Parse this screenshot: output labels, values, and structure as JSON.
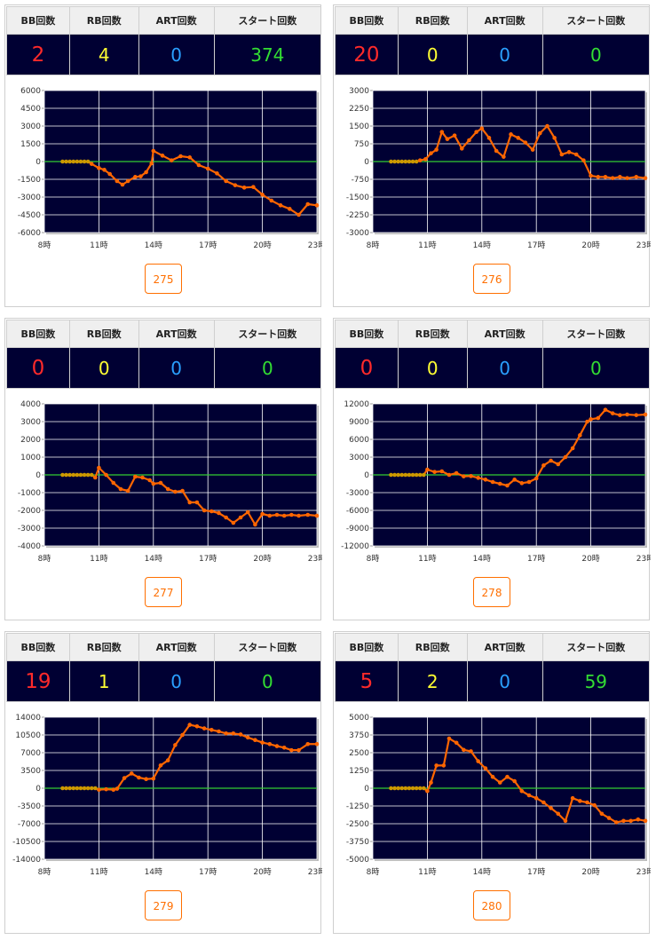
{
  "headers": {
    "bb": "BB回数",
    "rb": "RB回数",
    "art": "ART回数",
    "start": "スタート回数"
  },
  "colors": {
    "plot_bg": "#000033",
    "line": "#ff6600",
    "zero_line": "#33cc33",
    "flat_segment": "#cc9900",
    "grid": "#ffffff",
    "bb": "#ff2a2a",
    "rb": "#ffff33",
    "art": "#2aa0ff",
    "start": "#33dd33",
    "button": "#ff6f00"
  },
  "x_ticks": [
    "8時",
    "11時",
    "14時",
    "17時",
    "20時",
    "23時"
  ],
  "machines": [
    {
      "bb": "2",
      "rb": "4",
      "art": "0",
      "start": "374",
      "button": "275"
    },
    {
      "bb": "20",
      "rb": "0",
      "art": "0",
      "start": "0",
      "button": "276"
    },
    {
      "bb": "0",
      "rb": "0",
      "art": "0",
      "start": "0",
      "button": "277"
    },
    {
      "bb": "0",
      "rb": "0",
      "art": "0",
      "start": "0",
      "button": "278"
    },
    {
      "bb": "19",
      "rb": "1",
      "art": "0",
      "start": "0",
      "button": "279"
    },
    {
      "bb": "5",
      "rb": "2",
      "art": "0",
      "start": "59",
      "button": "280"
    }
  ],
  "chart_data": [
    {
      "type": "line",
      "xlim": [
        8,
        23
      ],
      "ylim": [
        -6000,
        6000
      ],
      "y_ticks": [
        "6000",
        "4500",
        "3000",
        "1500",
        "0",
        "-1500",
        "-3000",
        "-4500",
        "-6000"
      ],
      "x": [
        9,
        9.2,
        9.4,
        9.6,
        9.8,
        10,
        10.2,
        10.4,
        10.6,
        11,
        11.3,
        11.6,
        12,
        12.3,
        12.6,
        13,
        13.3,
        13.6,
        13.9,
        14,
        14.5,
        15,
        15.5,
        16,
        16.5,
        17,
        17.5,
        18,
        18.5,
        19,
        19.5,
        20,
        20.5,
        21,
        21.5,
        22,
        22.5,
        23
      ],
      "y": [
        0,
        0,
        0,
        0,
        0,
        0,
        0,
        0,
        -200,
        -550,
        -700,
        -1050,
        -1650,
        -1950,
        -1650,
        -1300,
        -1250,
        -900,
        -150,
        900,
        500,
        100,
        450,
        350,
        -300,
        -600,
        -1000,
        -1650,
        -2000,
        -2200,
        -2150,
        -2800,
        -3300,
        -3700,
        -4000,
        -4500,
        -3600,
        -3700
      ]
    },
    {
      "type": "line",
      "xlim": [
        8,
        23
      ],
      "ylim": [
        -3000,
        3000
      ],
      "y_ticks": [
        "3000",
        "2250",
        "1500",
        "750",
        "0",
        "-750",
        "-1500",
        "-2250",
        "-3000"
      ],
      "x": [
        9,
        9.2,
        9.4,
        9.6,
        9.8,
        10,
        10.2,
        10.4,
        10.6,
        10.9,
        11.2,
        11.5,
        11.8,
        12.1,
        12.5,
        12.9,
        13.3,
        13.7,
        14,
        14.4,
        14.8,
        15.2,
        15.6,
        16,
        16.4,
        16.8,
        17.2,
        17.6,
        18,
        18.4,
        18.8,
        19.2,
        19.6,
        20,
        20.4,
        20.8,
        21.2,
        21.6,
        22,
        22.5,
        23
      ],
      "y": [
        0,
        0,
        0,
        0,
        0,
        0,
        0,
        0,
        50,
        100,
        350,
        500,
        1250,
        950,
        1100,
        550,
        900,
        1250,
        1400,
        1000,
        450,
        200,
        1150,
        1000,
        800,
        500,
        1200,
        1500,
        1000,
        300,
        400,
        300,
        50,
        -600,
        -650,
        -650,
        -700,
        -650,
        -700,
        -650,
        -700
      ]
    },
    {
      "type": "line",
      "xlim": [
        8,
        23
      ],
      "ylim": [
        -4000,
        4000
      ],
      "y_ticks": [
        "4000",
        "3000",
        "2000",
        "1000",
        "0",
        "-1000",
        "-2000",
        "-3000",
        "-4000"
      ],
      "x": [
        9,
        9.2,
        9.4,
        9.6,
        9.8,
        10,
        10.2,
        10.4,
        10.6,
        10.8,
        11,
        11.4,
        11.8,
        12.2,
        12.6,
        13,
        13.4,
        13.8,
        14,
        14.4,
        14.8,
        15.2,
        15.6,
        16,
        16.4,
        16.8,
        17.2,
        17.6,
        18,
        18.4,
        18.8,
        19.2,
        19.6,
        20,
        20.4,
        20.8,
        21.2,
        21.6,
        22,
        22.5,
        23
      ],
      "y": [
        0,
        0,
        0,
        0,
        0,
        0,
        0,
        0,
        0,
        -150,
        400,
        0,
        -450,
        -800,
        -900,
        -100,
        -150,
        -300,
        -500,
        -450,
        -800,
        -950,
        -900,
        -1550,
        -1550,
        -2000,
        -2050,
        -2150,
        -2400,
        -2700,
        -2400,
        -2100,
        -2800,
        -2200,
        -2300,
        -2250,
        -2300,
        -2250,
        -2300,
        -2250,
        -2300
      ]
    },
    {
      "type": "line",
      "xlim": [
        8,
        23
      ],
      "ylim": [
        -12000,
        12000
      ],
      "y_ticks": [
        "12000",
        "9000",
        "6000",
        "3000",
        "0",
        "-3000",
        "-6000",
        "-9000",
        "-12000"
      ],
      "x": [
        9,
        9.2,
        9.4,
        9.6,
        9.8,
        10,
        10.2,
        10.4,
        10.6,
        10.8,
        11,
        11.4,
        11.8,
        12.2,
        12.6,
        13,
        13.4,
        13.8,
        14.2,
        14.6,
        15,
        15.4,
        15.8,
        16.2,
        16.6,
        17,
        17.4,
        17.8,
        18.2,
        18.6,
        19,
        19.4,
        19.8,
        20,
        20.4,
        20.8,
        21.2,
        21.6,
        22,
        22.5,
        23
      ],
      "y": [
        0,
        0,
        0,
        0,
        0,
        0,
        0,
        0,
        0,
        0,
        900,
        500,
        600,
        0,
        300,
        -250,
        -200,
        -500,
        -800,
        -1200,
        -1500,
        -1800,
        -800,
        -1400,
        -1200,
        -600,
        1600,
        2400,
        1800,
        3000,
        4500,
        6700,
        9000,
        9400,
        9600,
        11000,
        10400,
        10100,
        10200,
        10100,
        10200
      ]
    },
    {
      "type": "line",
      "xlim": [
        8,
        23
      ],
      "ylim": [
        -14000,
        14000
      ],
      "y_ticks": [
        "14000",
        "10500",
        "7000",
        "3500",
        "0",
        "-3500",
        "-7000",
        "-10500",
        "-14000"
      ],
      "x": [
        9,
        9.2,
        9.4,
        9.6,
        9.8,
        10,
        10.2,
        10.4,
        10.6,
        10.8,
        11,
        11.4,
        11.8,
        12,
        12.4,
        12.8,
        13.2,
        13.6,
        14,
        14.4,
        14.8,
        15.2,
        15.6,
        16,
        16.4,
        16.8,
        17.2,
        17.6,
        18,
        18.4,
        18.8,
        19.2,
        19.6,
        20,
        20.4,
        20.8,
        21.2,
        21.6,
        22,
        22.5,
        23
      ],
      "y": [
        0,
        0,
        0,
        0,
        0,
        0,
        0,
        0,
        0,
        0,
        -300,
        -200,
        -300,
        -100,
        2000,
        2900,
        2100,
        1800,
        1900,
        4500,
        5500,
        8500,
        10500,
        12500,
        12200,
        11800,
        11500,
        11200,
        10800,
        10800,
        10600,
        10000,
        9500,
        9000,
        8700,
        8300,
        8000,
        7500,
        7500,
        8700,
        8700
      ]
    },
    {
      "type": "line",
      "xlim": [
        8,
        23
      ],
      "ylim": [
        -5000,
        5000
      ],
      "y_ticks": [
        "5000",
        "3750",
        "2500",
        "1250",
        "0",
        "-1250",
        "-2500",
        "-3750",
        "-5000"
      ],
      "x": [
        9,
        9.2,
        9.4,
        9.6,
        9.8,
        10,
        10.2,
        10.4,
        10.6,
        10.8,
        11,
        11.2,
        11.5,
        11.9,
        12.2,
        12.6,
        13,
        13.4,
        13.8,
        14.2,
        14.6,
        15,
        15.4,
        15.8,
        16.2,
        16.6,
        17,
        17.4,
        17.8,
        18.2,
        18.6,
        19,
        19.4,
        19.8,
        20.2,
        20.6,
        21,
        21.4,
        21.8,
        22.2,
        22.6,
        23
      ],
      "y": [
        0,
        0,
        0,
        0,
        0,
        0,
        0,
        0,
        0,
        0,
        -200,
        400,
        1600,
        1600,
        3500,
        3200,
        2700,
        2600,
        1900,
        1400,
        800,
        400,
        800,
        500,
        -200,
        -500,
        -700,
        -1000,
        -1400,
        -1800,
        -2300,
        -700,
        -900,
        -1000,
        -1200,
        -1800,
        -2100,
        -2400,
        -2300,
        -2300,
        -2200,
        -2300
      ]
    }
  ]
}
